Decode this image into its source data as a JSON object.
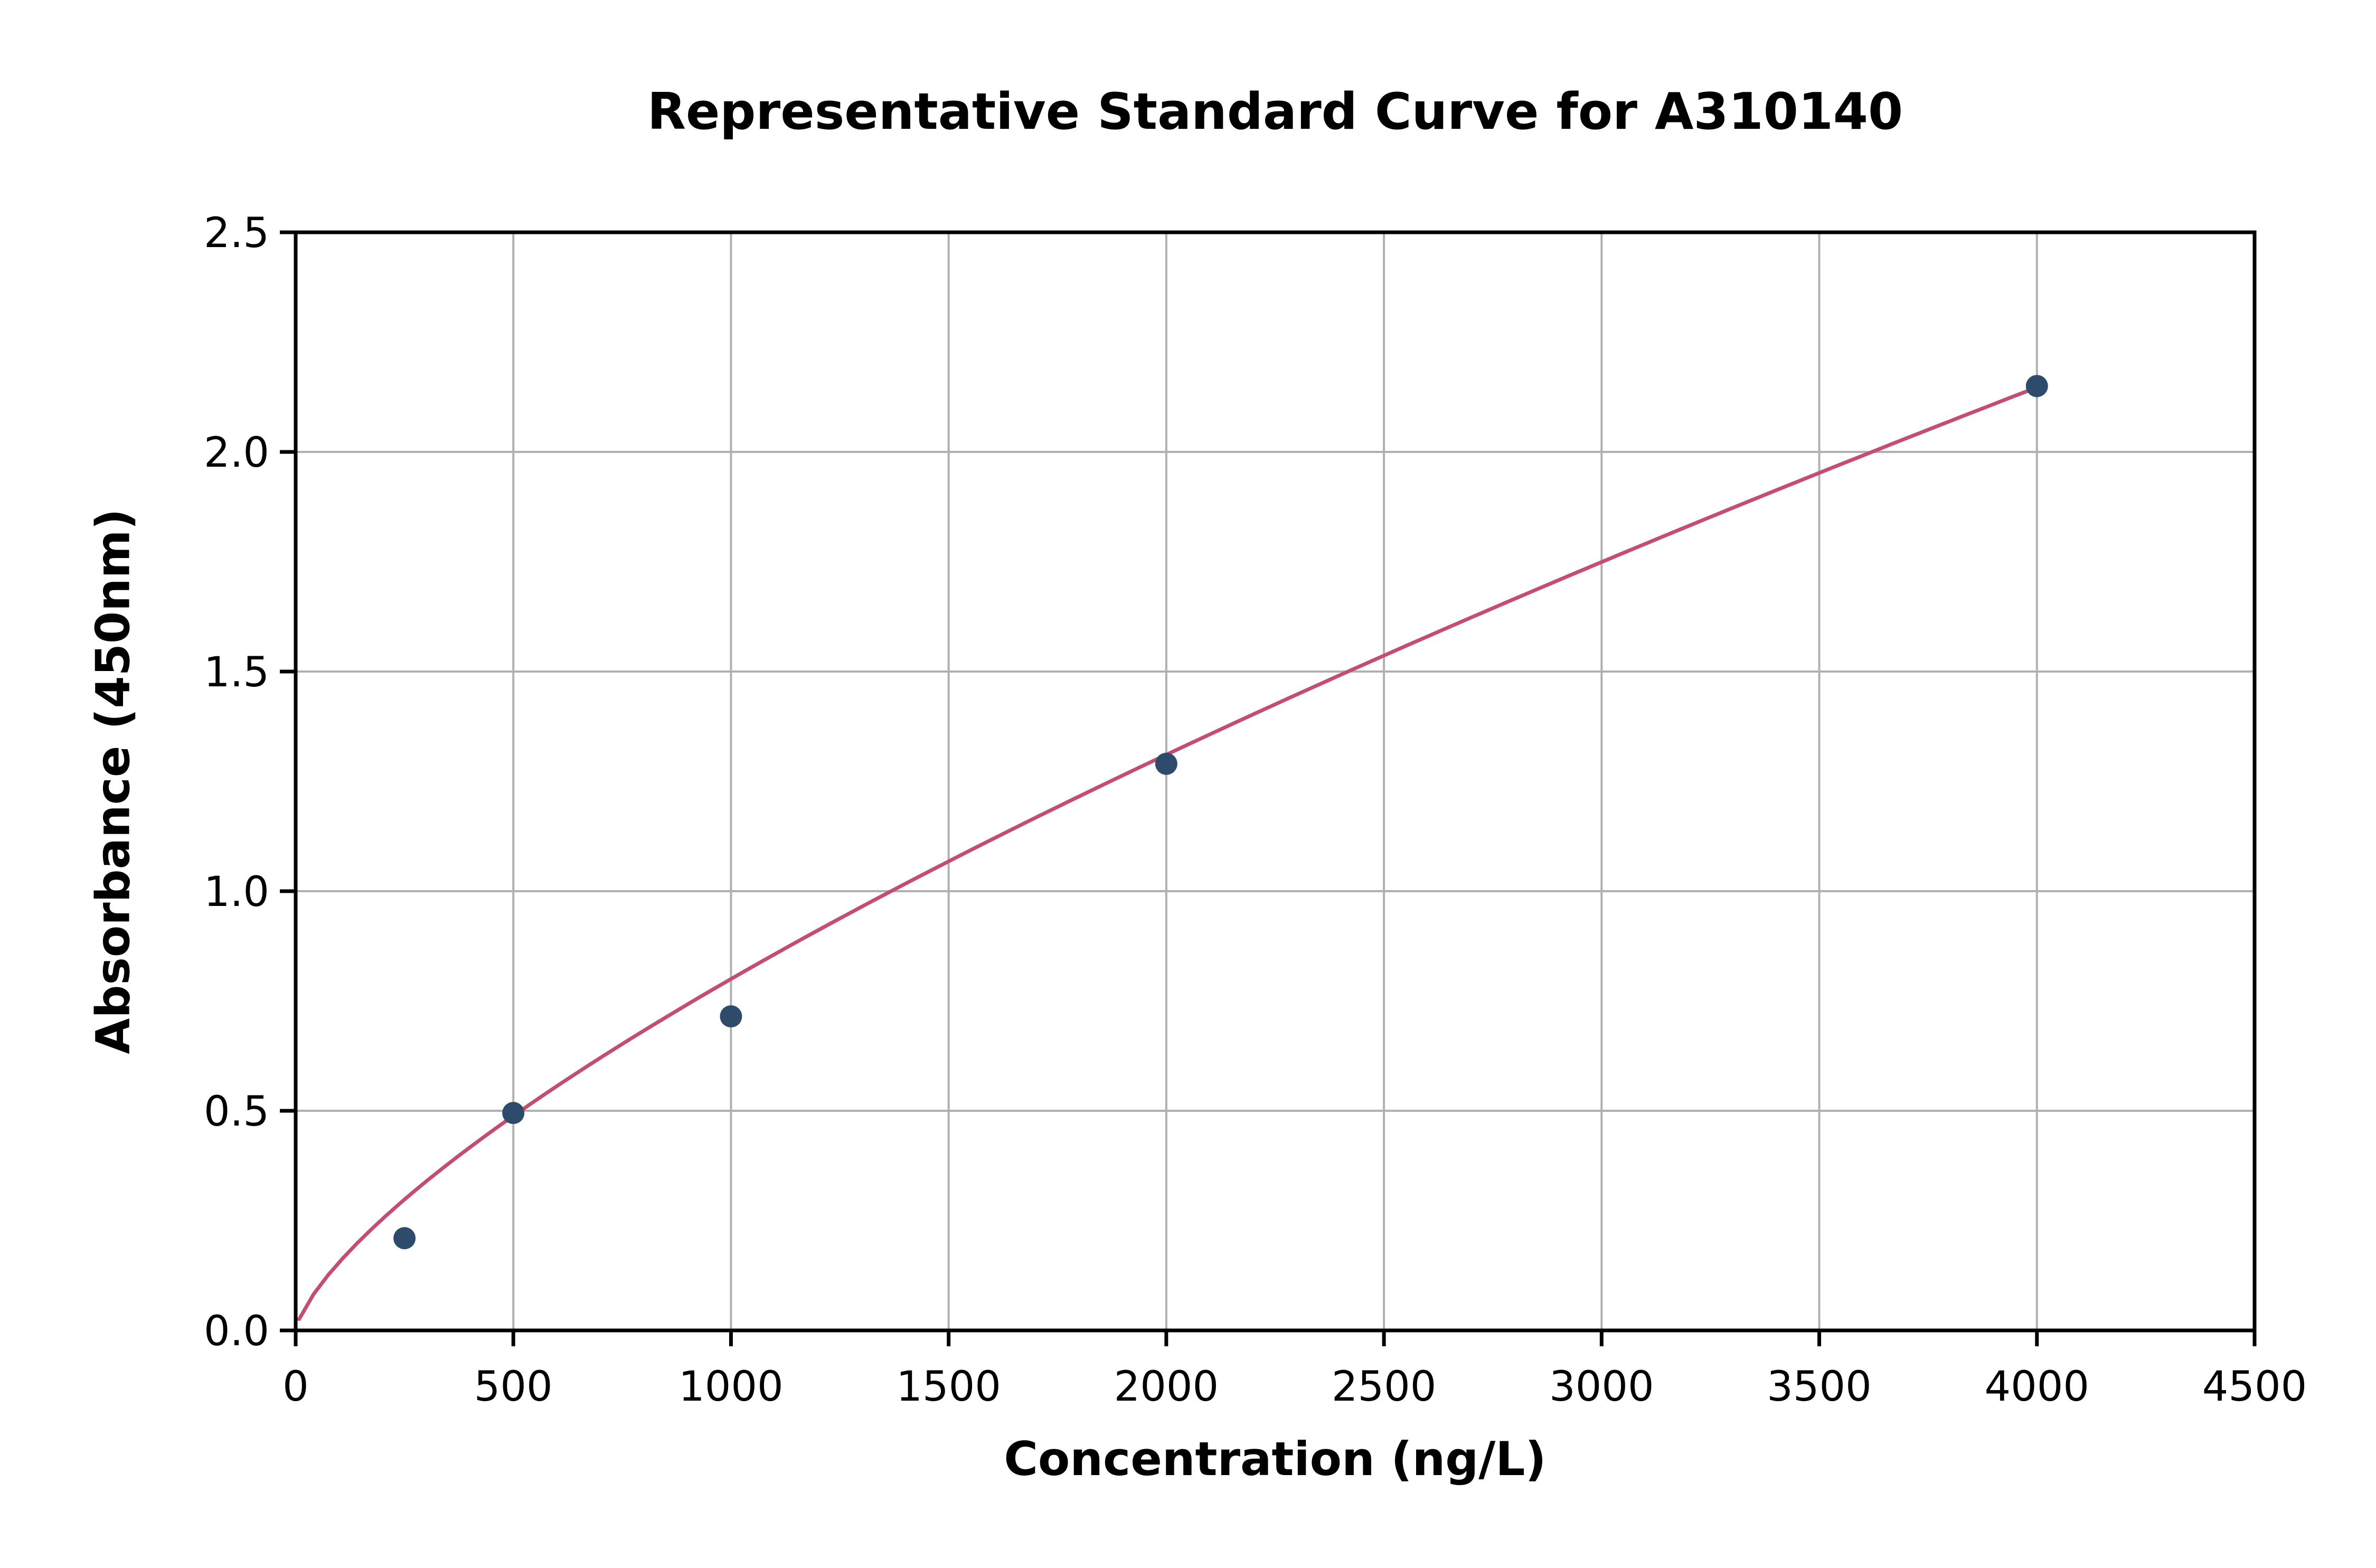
{
  "chart_data": {
    "type": "scatter",
    "title": "Representative Standard Curve for A310140",
    "xlabel": "Concentration (ng/L)",
    "ylabel": "Absorbance (450nm)",
    "xlim": [
      0,
      4500
    ],
    "ylim": [
      0,
      2.5
    ],
    "xticks": [
      0,
      500,
      1000,
      1500,
      2000,
      2500,
      3000,
      3500,
      4000,
      4500
    ],
    "xtick_labels": [
      "0",
      "500",
      "1000",
      "1500",
      "2000",
      "2500",
      "3000",
      "3500",
      "4000",
      "4500"
    ],
    "yticks": [
      0,
      0.5,
      1.0,
      1.5,
      2.0,
      2.5
    ],
    "ytick_labels": [
      "0.0",
      "0.5",
      "1.0",
      "1.5",
      "2.0",
      "2.5"
    ],
    "grid": true,
    "legend": "none",
    "points": {
      "x": [
        250,
        500,
        1000,
        2000,
        4000
      ],
      "y": [
        0.21,
        0.495,
        0.715,
        1.29,
        2.15
      ]
    },
    "fit_curve": {
      "model": "power",
      "a": 0.00585,
      "b": 0.712,
      "x_start": 8,
      "x_end": 4000
    },
    "colors": {
      "curve": "#c44e73",
      "points": "#2f4b6c",
      "grid": "#b0b0b0",
      "axis": "#000000",
      "background": "#ffffff",
      "text": "#000000"
    }
  }
}
